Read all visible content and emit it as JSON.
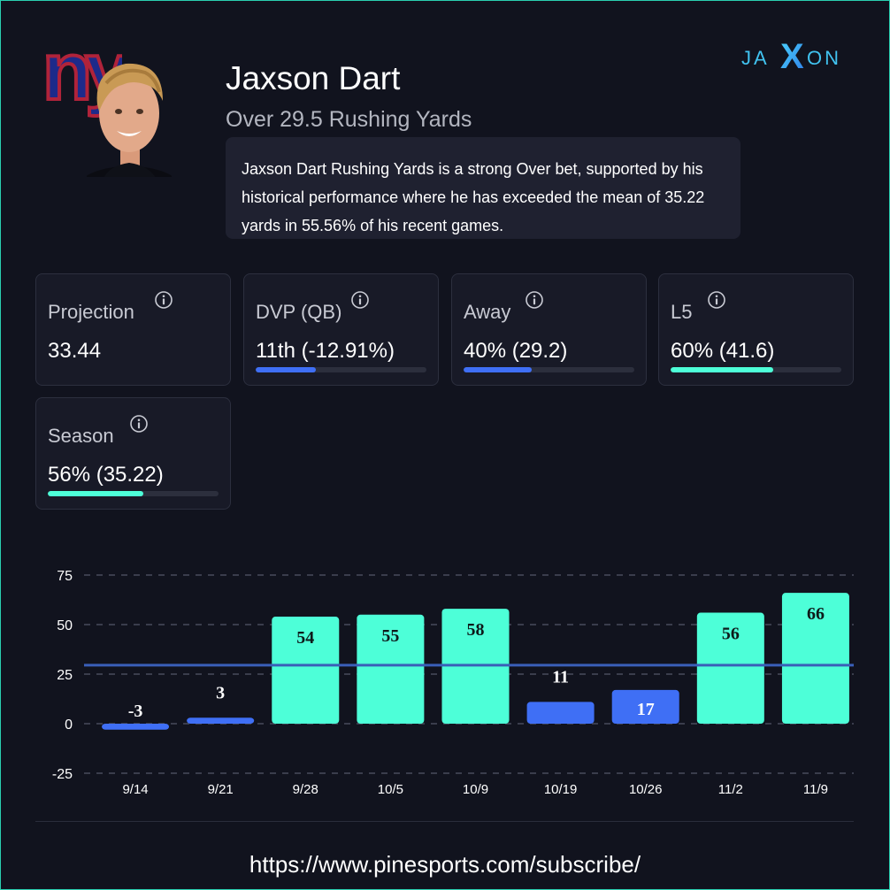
{
  "player": {
    "name": "Jaxson Dart",
    "prop": "Over 29.5 Rushing Yards",
    "summary": "Jaxson Dart Rushing Yards is a strong Over bet, supported by his historical performance where he has exceeded the mean of 35.22 yards in 55.56% of his recent games.",
    "team_logo_text": "ny"
  },
  "brand": {
    "left": "JA",
    "mid": "X",
    "right": "ON"
  },
  "colors": {
    "background": "#11131e",
    "teal": "#4dffd8",
    "blue": "#3f6ff5",
    "line": "#3a5fb8",
    "giants_blue": "#1d2a8a",
    "giants_red": "#b0233a"
  },
  "stats": [
    {
      "label": "Projection",
      "value": "33.44",
      "fill": null,
      "color": null
    },
    {
      "label": "DVP (QB)",
      "value": "11th (-12.91%)",
      "fill": 0.35,
      "color": "#3f6ff5"
    },
    {
      "label": "Away",
      "value": "40% (29.2)",
      "fill": 0.4,
      "color": "#3f6ff5"
    },
    {
      "label": "L5",
      "value": "60% (41.6)",
      "fill": 0.6,
      "color": "#4dffd8"
    },
    {
      "label": "Season",
      "value": "56% (35.22)",
      "fill": 0.56,
      "color": "#4dffd8"
    }
  ],
  "chart_data": {
    "type": "bar",
    "categories": [
      "9/14",
      "9/21",
      "9/28",
      "10/5",
      "10/9",
      "10/19",
      "10/26",
      "11/2",
      "11/9"
    ],
    "values": [
      -3,
      3,
      54,
      55,
      58,
      11,
      17,
      56,
      66
    ],
    "line_value": 29.5,
    "ylim": [
      -25,
      75
    ],
    "yticks": [
      -25,
      0,
      25,
      50,
      75
    ],
    "over_color": "#4dffd8",
    "under_color": "#3f6ff5",
    "title": "",
    "xlabel": "",
    "ylabel": ""
  },
  "footer": {
    "url": "https://www.pinesports.com/subscribe/"
  }
}
